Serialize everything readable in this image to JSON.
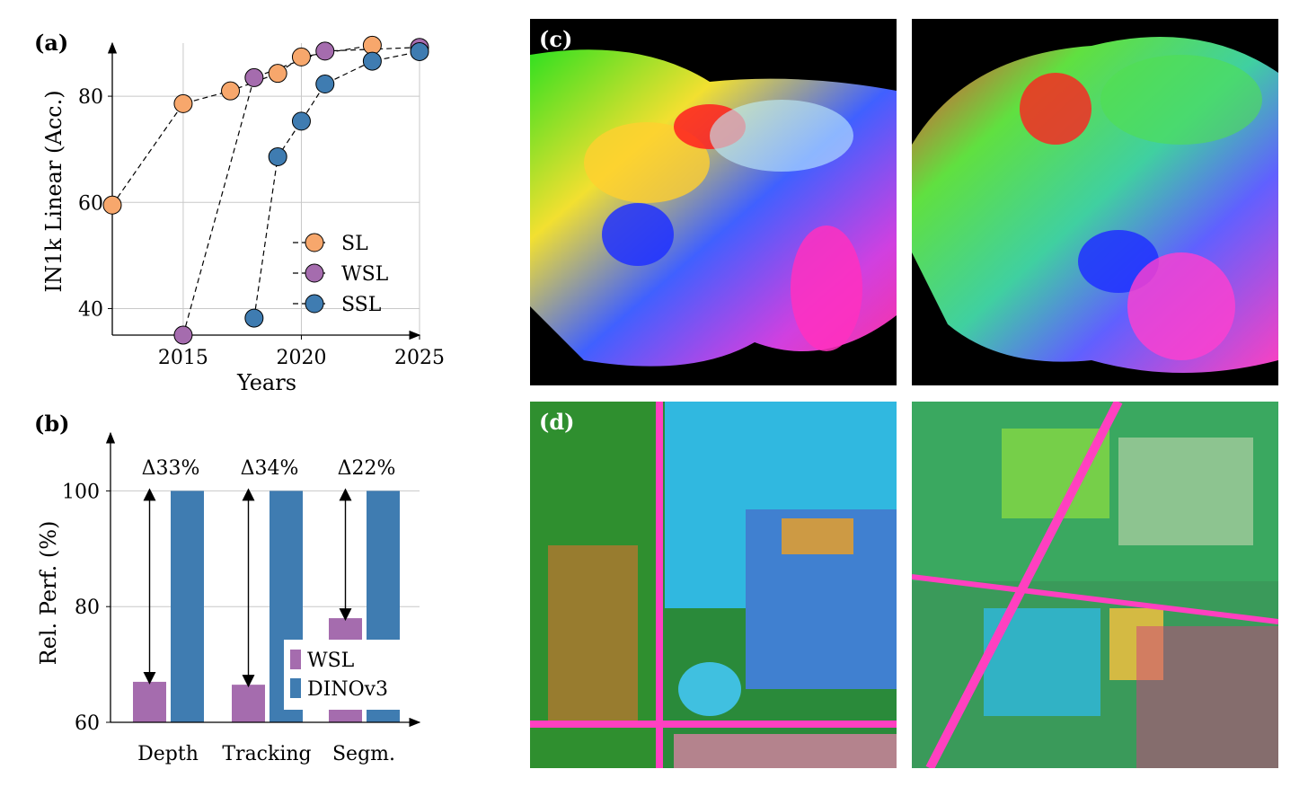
{
  "chart_data": [
    {
      "panel": "(a)",
      "type": "scatter",
      "xlabel": "Years",
      "ylabel": "IN1k Linear (Acc.)",
      "xlim": [
        2012,
        2025
      ],
      "ylim": [
        35,
        90
      ],
      "x_ticks": [
        "2015",
        "2020",
        "2025"
      ],
      "y_ticks": [
        "40",
        "60",
        "80"
      ],
      "grid": true,
      "legend_position": "right",
      "series": [
        {
          "name": "SL",
          "color": "#f7a76c",
          "x": [
            2012,
            2015,
            2017,
            2019,
            2020,
            2023
          ],
          "y": [
            59.5,
            78.6,
            81.0,
            84.3,
            87.4,
            89.6
          ]
        },
        {
          "name": "WSL",
          "color": "#a56cae",
          "x": [
            2015,
            2018,
            2021,
            2025
          ],
          "y": [
            35,
            83.5,
            88.5,
            89.2
          ]
        },
        {
          "name": "SSL",
          "color": "#3f7cb1",
          "x": [
            2018,
            2019,
            2020,
            2021,
            2023,
            2025
          ],
          "y": [
            38.2,
            68.6,
            75.3,
            82.3,
            86.6,
            88.4
          ]
        }
      ]
    },
    {
      "panel": "(b)",
      "type": "bar",
      "xlabel": "",
      "ylabel": "Rel. Perf. (%)",
      "ylim": [
        60,
        110
      ],
      "y_ticks": [
        "60",
        "80",
        "100"
      ],
      "grid": true,
      "legend_position": "bottom-right",
      "categories": [
        "Depth",
        "Tracking",
        "Segm."
      ],
      "series": [
        {
          "name": "WSL",
          "color": "#a56cae",
          "values": [
            67,
            66.5,
            78
          ]
        },
        {
          "name": "DINOv3",
          "color": "#3f7cb1",
          "values": [
            100,
            100,
            100
          ]
        }
      ],
      "annotations": [
        "Δ33%",
        "Δ34%",
        "Δ22%"
      ]
    }
  ],
  "image_panels": {
    "c_label": "(c)",
    "d_label": "(d)"
  }
}
